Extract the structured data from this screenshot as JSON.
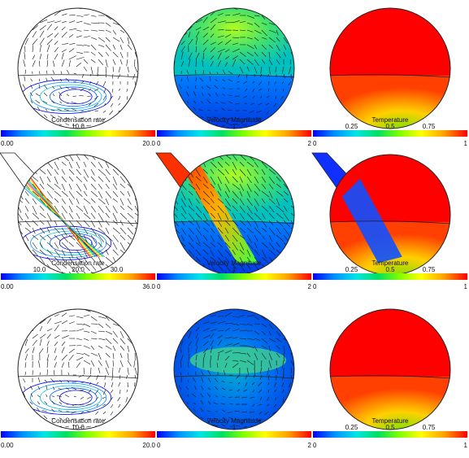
{
  "colors": {
    "rainbow": [
      "#0000ff",
      "#0090ff",
      "#00e5e5",
      "#00e060",
      "#80ff00",
      "#ffff00",
      "#ffa000",
      "#ff0000"
    ],
    "outline": "#222222",
    "vector": "#111111"
  },
  "panels": [
    {
      "id": "r1-condensation",
      "kind": "condensation",
      "title": "Condensation rate",
      "ticks_above": [
        "10.0"
      ],
      "ticks_below": [
        "0.00",
        "20.0"
      ]
    },
    {
      "id": "r1-velocity",
      "kind": "velocity",
      "title": "Velocity Magnitude",
      "ticks_above": [
        "1"
      ],
      "ticks_below": [
        "0",
        "2"
      ]
    },
    {
      "id": "r1-temperature",
      "kind": "temperature",
      "title": "Temperature",
      "ticks_above": [
        "0.25",
        "0.5",
        "0.75"
      ],
      "ticks_below": [
        "0",
        "1"
      ]
    },
    {
      "id": "r2-condensation",
      "kind": "condensation-inlet",
      "title": "Condensation rate",
      "ticks_above": [
        "10.0",
        "20.0",
        "30.0"
      ],
      "ticks_below": [
        "0.00",
        "36.0"
      ]
    },
    {
      "id": "r2-velocity",
      "kind": "velocity-inlet",
      "title": "Velocity Magnitude",
      "ticks_above": [
        "1"
      ],
      "ticks_below": [
        "0",
        "2"
      ]
    },
    {
      "id": "r2-temperature",
      "kind": "temperature-inlet",
      "title": "Temperature",
      "ticks_above": [
        "0.25",
        "0.5",
        "0.75"
      ],
      "ticks_below": [
        "0",
        "1"
      ]
    },
    {
      "id": "r3-condensation",
      "kind": "condensation",
      "title": "Condensation rate",
      "ticks_above": [
        "10.0"
      ],
      "ticks_below": [
        "0.00",
        "20.0"
      ]
    },
    {
      "id": "r3-velocity",
      "kind": "velocity-low",
      "title": "Velocity Magnitude",
      "ticks_above": [
        "1"
      ],
      "ticks_below": [
        "0",
        "2"
      ]
    },
    {
      "id": "r3-temperature",
      "kind": "temperature",
      "title": "Temperature",
      "ticks_above": [
        "0.25",
        "0.5",
        "0.75"
      ],
      "ticks_below": [
        "0",
        "1"
      ]
    }
  ]
}
